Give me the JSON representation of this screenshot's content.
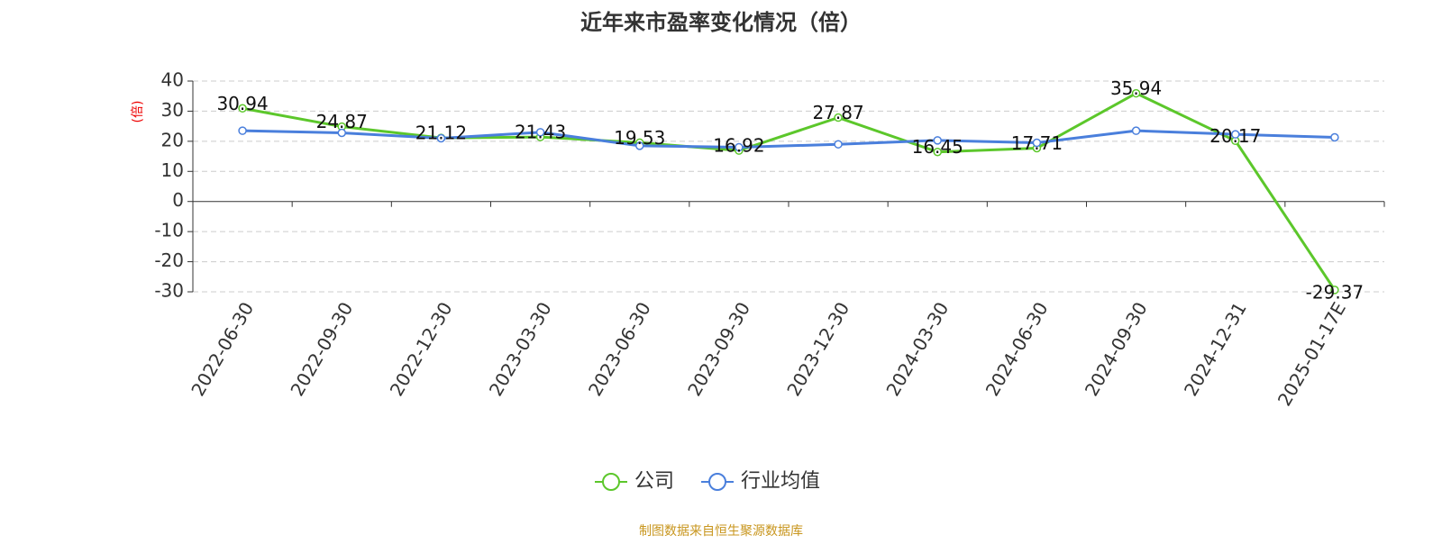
{
  "chart_data": {
    "type": "line",
    "title": "近年来市盈率变化情况（倍）",
    "y_label": "(倍)",
    "source": "制图数据来自恒生聚源数据库",
    "categories": [
      "2022-06-30",
      "2022-09-30",
      "2022-12-30",
      "2023-03-30",
      "2023-06-30",
      "2023-09-30",
      "2023-12-30",
      "2024-03-30",
      "2024-06-30",
      "2024-09-30",
      "2024-12-31",
      "2025-01-17E"
    ],
    "series": [
      {
        "name": "公司",
        "color": "#5cc72b",
        "data_labels": true,
        "values": [
          30.94,
          24.87,
          21.12,
          21.43,
          19.53,
          16.92,
          27.87,
          16.45,
          17.71,
          35.94,
          20.17,
          -29.37
        ]
      },
      {
        "name": "行业均值",
        "color": "#4a7fdc",
        "data_labels": false,
        "values": [
          23.5,
          22.8,
          21,
          23,
          18.5,
          18,
          19,
          20.3,
          19.5,
          23.5,
          22.3,
          21.3
        ]
      }
    ],
    "ylim": [
      -30,
      40
    ],
    "yticks": [
      -30,
      -20,
      -10,
      0,
      10,
      20,
      30,
      40
    ],
    "grid": true
  }
}
